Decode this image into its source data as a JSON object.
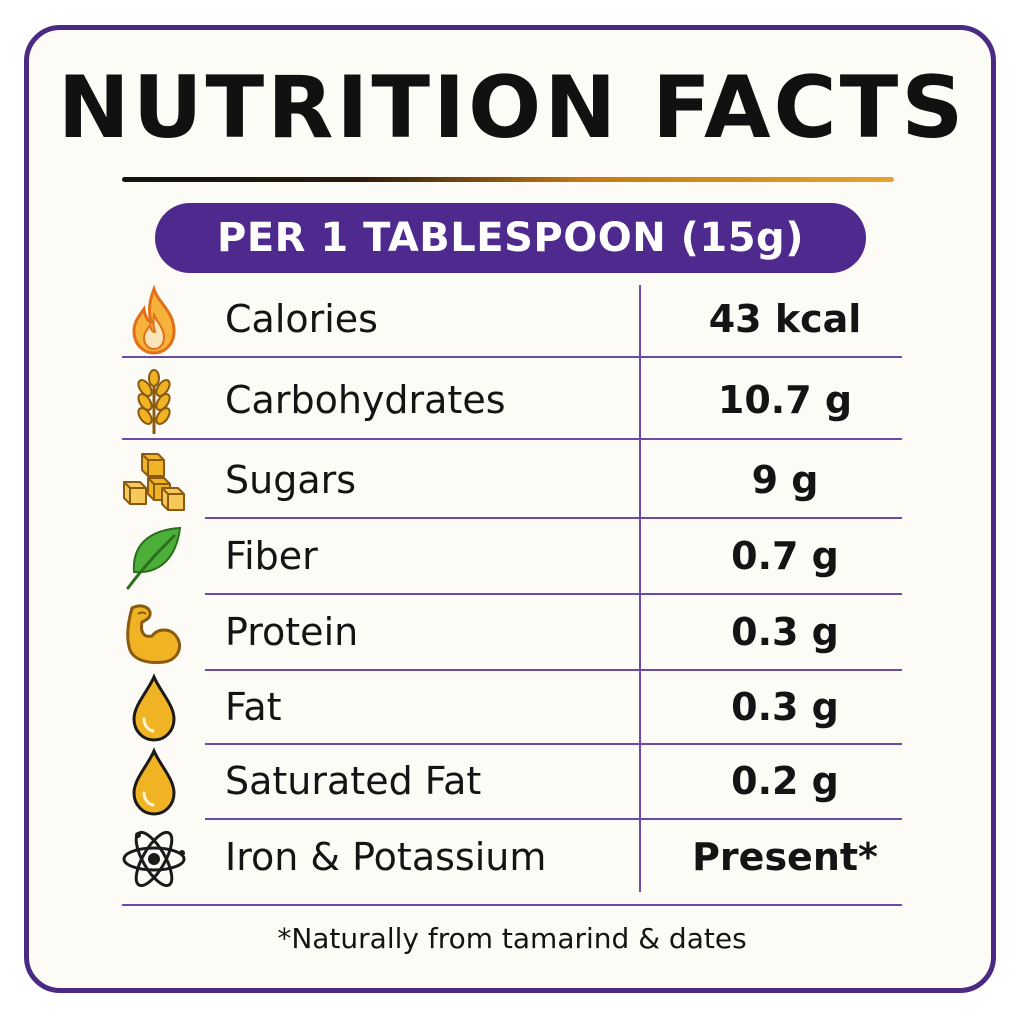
{
  "title": "NUTRITION FACTS",
  "serving": "PER 1 TABLESPOON (15g)",
  "rows": [
    {
      "icon": "flame-icon",
      "label": "Calories",
      "value": "43 kcal"
    },
    {
      "icon": "wheat-icon",
      "label": "Carbohydrates",
      "value": "10.7 g"
    },
    {
      "icon": "sugar-cubes-icon",
      "label": "Sugars",
      "value": "9 g"
    },
    {
      "icon": "leaf-icon",
      "label": "Fiber",
      "value": "0.7 g"
    },
    {
      "icon": "flexed-bicep-icon",
      "label": "Protein",
      "value": "0.3 g"
    },
    {
      "icon": "oil-drop-icon",
      "label": "Fat",
      "value": "0.3 g"
    },
    {
      "icon": "oil-drop-icon",
      "label": "Saturated Fat",
      "value": "0.2 g"
    },
    {
      "icon": "atom-icon",
      "label": "Iron & Potassium",
      "value": "Present*"
    }
  ],
  "footnote": "*Naturally from tamarind & dates",
  "colors": {
    "border": "#4b2a84",
    "serving_band": "#4e2a8e",
    "divider": "#6a4aa8",
    "icon_orange": "#f08a1c",
    "icon_gold": "#f0b323",
    "icon_green": "#3f9a2e"
  }
}
